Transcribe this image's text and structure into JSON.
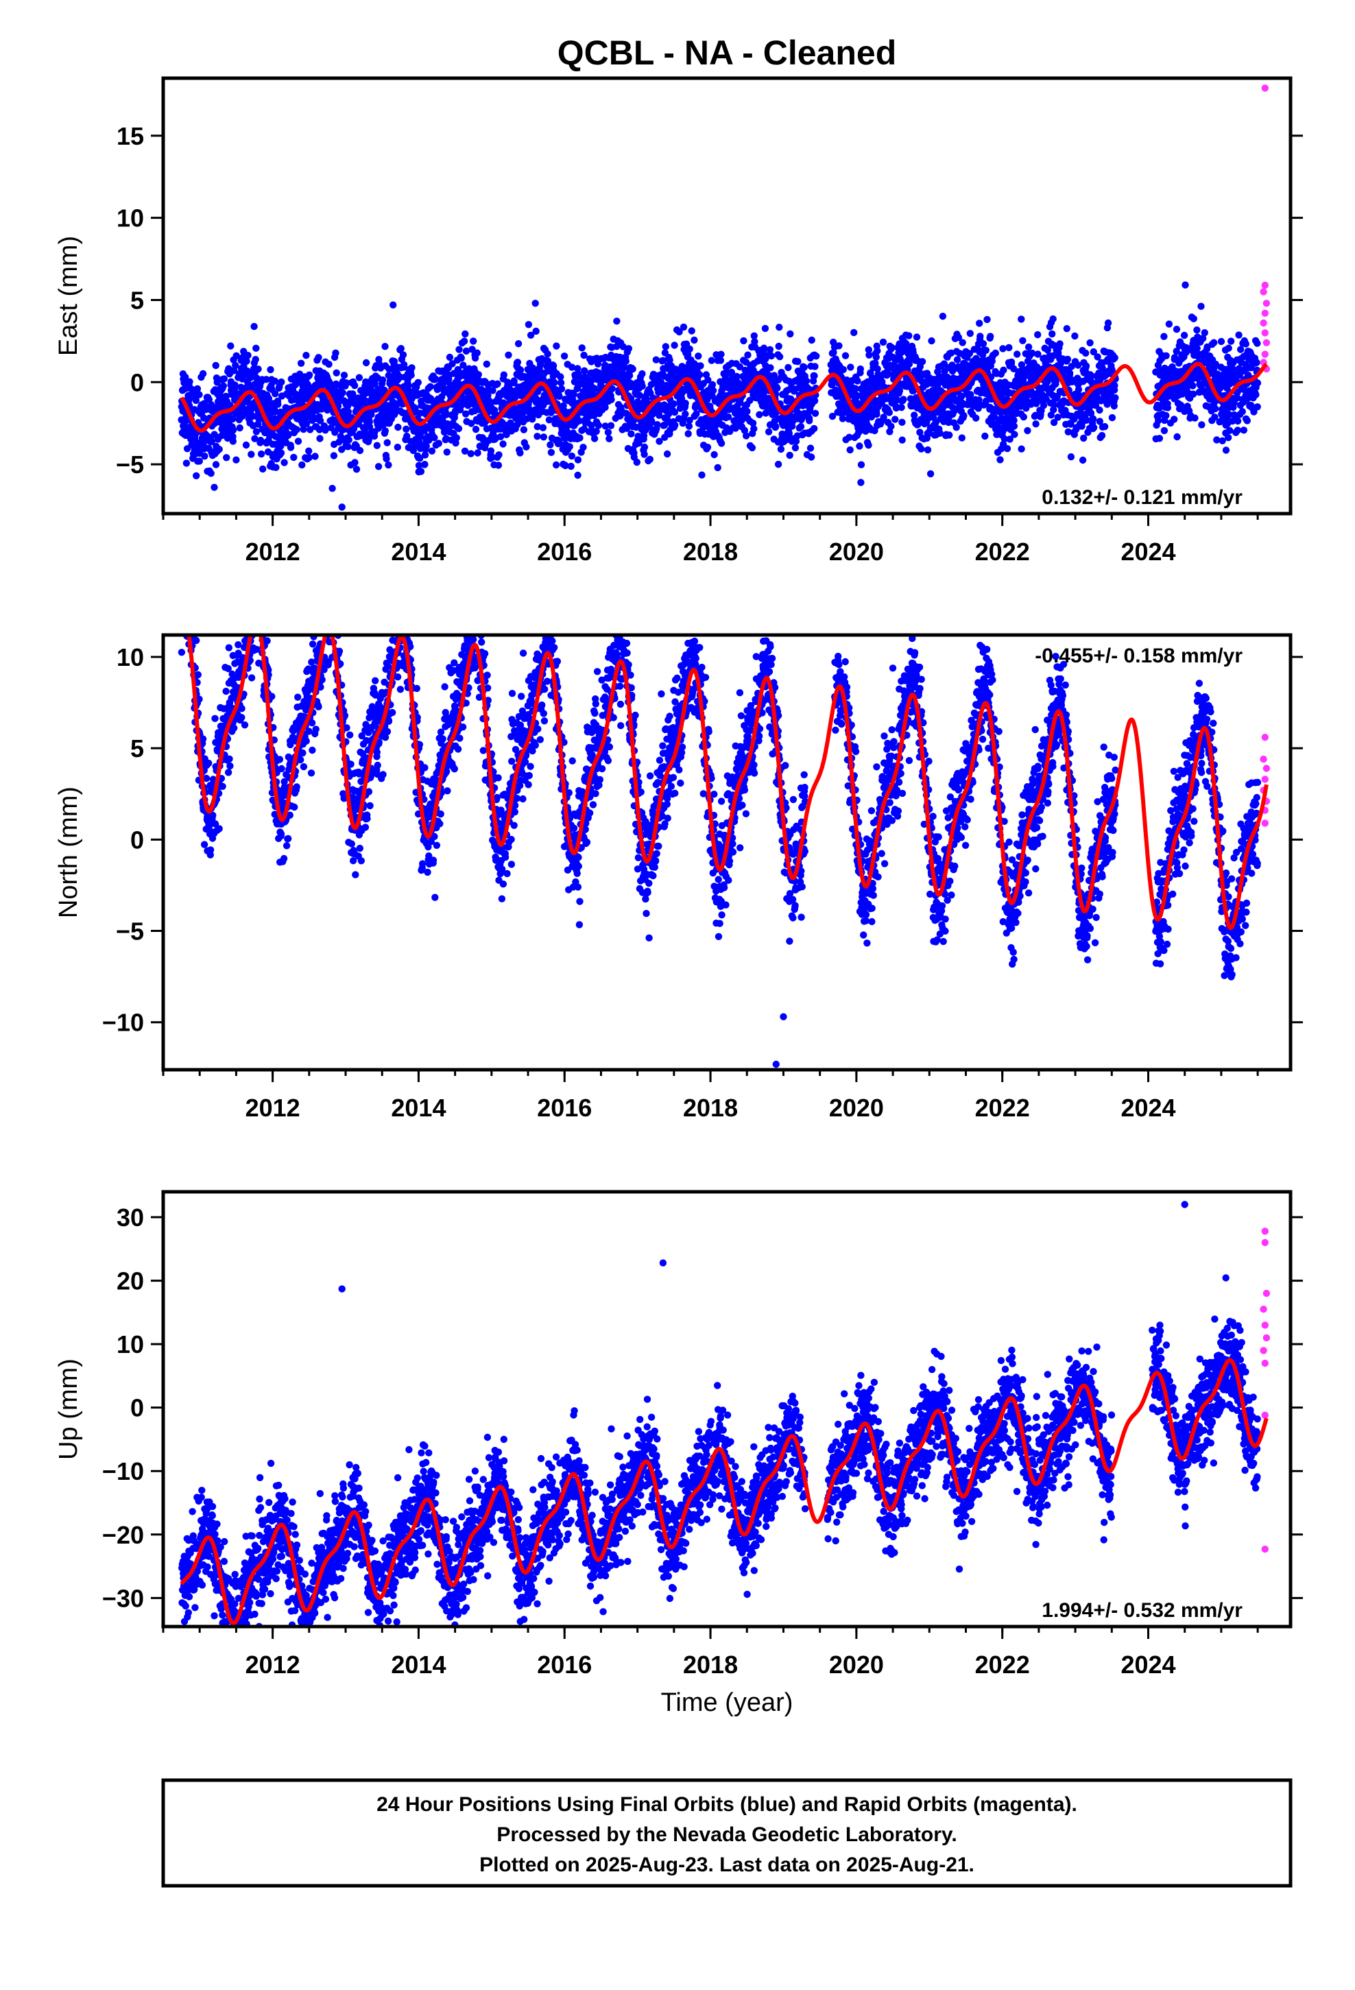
{
  "title": "QCBL  - NA - Cleaned",
  "xlabel": "Time (year)",
  "footer": [
    "24 Hour Positions Using Final Orbits (blue) and Rapid Orbits (magenta).",
    "Processed by the Nevada Geodetic Laboratory.",
    "Plotted on 2025-Aug-23. Last data on 2025-Aug-21."
  ],
  "colors": {
    "final": "#0000ff",
    "rapid": "#ff33ff",
    "model": "#ff0000",
    "axis": "#000000"
  },
  "chart_data": [
    {
      "type": "scatter",
      "ylabel": "East (mm)",
      "rate_label": "0.132+/- 0.121 mm/yr",
      "xlim": [
        2010.5,
        2025.95
      ],
      "ylim": [
        -8,
        18.5
      ],
      "xticks": [
        2012,
        2014,
        2016,
        2018,
        2020,
        2022,
        2024
      ],
      "xtick_labels": [
        "2012",
        "2014",
        "2016",
        "2018",
        "2020",
        "2022",
        "2024"
      ],
      "yticks": [
        -5,
        0,
        5,
        10,
        15
      ],
      "ytick_labels": [
        "−5",
        "0",
        "5",
        "10",
        "15"
      ],
      "model": {
        "intercept": -0.9,
        "rate": 0.132,
        "annual_amp": 0.9,
        "annual_phase": 0.35,
        "semi_amp": 0.4,
        "semi_phase": 0.1
      },
      "gaps": [
        [
          2019.45,
          2019.65
        ],
        [
          2023.55,
          2024.1
        ]
      ],
      "series": [
        {
          "kind": "final",
          "x_range": [
            2010.75,
            2025.5
          ],
          "scatter": 1.3,
          "seasonal_scale": 1.0,
          "outliers": [
            [
              2011.2,
              -6.4
            ],
            [
              2012.95,
              -7.6
            ],
            [
              2013.15,
              -5.3
            ],
            [
              2016.1,
              -4.5
            ],
            [
              2018.1,
              -5.2
            ],
            [
              2015.6,
              4.8
            ],
            [
              2013.65,
              4.7
            ]
          ]
        },
        {
          "kind": "rapid",
          "points": [
            [
              2025.6,
              17.9
            ],
            [
              2025.6,
              5.9
            ],
            [
              2025.58,
              5.5
            ],
            [
              2025.62,
              4.8
            ],
            [
              2025.6,
              4.2
            ],
            [
              2025.58,
              3.6
            ],
            [
              2025.6,
              3.0
            ],
            [
              2025.62,
              2.4
            ],
            [
              2025.6,
              1.7
            ],
            [
              2025.58,
              1.2
            ],
            [
              2025.62,
              0.8
            ]
          ]
        }
      ]
    },
    {
      "type": "scatter",
      "ylabel": "North (mm)",
      "rate_label": "-0.455+/- 0.158 mm/yr",
      "xlim": [
        2010.5,
        2025.95
      ],
      "ylim": [
        -12.6,
        11.2
      ],
      "xticks": [
        2012,
        2014,
        2016,
        2018,
        2020,
        2022,
        2024
      ],
      "xtick_labels": [
        "2012",
        "2014",
        "2016",
        "2018",
        "2020",
        "2022",
        "2024"
      ],
      "yticks": [
        -10,
        -5,
        0,
        5,
        10
      ],
      "ytick_labels": [
        "−10",
        "−5",
        "0",
        "5",
        "10"
      ],
      "model": {
        "intercept": 3.8,
        "rate": -0.455,
        "annual_amp": 4.6,
        "annual_phase": 0.45,
        "semi_amp": 1.6,
        "semi_phase": 0.2
      },
      "gaps": [
        [
          2019.3,
          2019.7
        ],
        [
          2023.55,
          2024.1
        ]
      ],
      "series": [
        {
          "kind": "final",
          "x_range": [
            2010.75,
            2025.5
          ],
          "scatter": 1.4,
          "seasonal_scale": 1.08,
          "outliers": [
            [
              2018.9,
              -12.3
            ],
            [
              2019.0,
              -9.7
            ],
            [
              2012.55,
              10.7
            ],
            [
              2011.4,
              10.5
            ],
            [
              2016.45,
              9.2
            ],
            [
              2018.55,
              6.9
            ]
          ]
        },
        {
          "kind": "rapid",
          "points": [
            [
              2025.6,
              5.6
            ],
            [
              2025.58,
              4.4
            ],
            [
              2025.62,
              3.9
            ],
            [
              2025.6,
              3.3
            ],
            [
              2025.58,
              2.7
            ],
            [
              2025.62,
              2.1
            ],
            [
              2025.6,
              1.6
            ],
            [
              2025.6,
              0.9
            ]
          ]
        }
      ]
    },
    {
      "type": "scatter",
      "ylabel": "Up (mm)",
      "rate_label": "1.994+/- 0.532 mm/yr",
      "xlim": [
        2010.5,
        2025.95
      ],
      "ylim": [
        -34.5,
        34
      ],
      "xticks": [
        2012,
        2014,
        2016,
        2018,
        2020,
        2022,
        2024
      ],
      "xtick_labels": [
        "2012",
        "2014",
        "2016",
        "2018",
        "2020",
        "2022",
        "2024"
      ],
      "yticks": [
        -30,
        -20,
        -10,
        0,
        10,
        20,
        30
      ],
      "ytick_labels": [
        "−30",
        "−20",
        "−10",
        "0",
        "10",
        "20",
        "30"
      ],
      "model": {
        "intercept": -13.5,
        "rate": 1.994,
        "annual_amp": 6.0,
        "annual_phase": 0.78,
        "semi_amp": 2.2,
        "semi_phase": 0.55
      },
      "gaps": [
        [
          2019.3,
          2019.6
        ],
        [
          2023.5,
          2024.05
        ]
      ],
      "series": [
        {
          "kind": "final",
          "x_range": [
            2010.75,
            2025.5
          ],
          "scatter": 3.6,
          "seasonal_scale": 1.0,
          "outliers": [
            [
              2011.2,
              -32.8
            ],
            [
              2011.5,
              -33.0
            ],
            [
              2012.95,
              18.7
            ],
            [
              2017.35,
              22.8
            ],
            [
              2024.5,
              32.0
            ],
            [
              2013.3,
              -26.8
            ],
            [
              2022.2,
              -13.2
            ]
          ]
        },
        {
          "kind": "rapid",
          "points": [
            [
              2025.6,
              27.8
            ],
            [
              2025.6,
              26.0
            ],
            [
              2025.62,
              18.0
            ],
            [
              2025.58,
              15.5
            ],
            [
              2025.6,
              13.0
            ],
            [
              2025.62,
              11.0
            ],
            [
              2025.58,
              9.0
            ],
            [
              2025.6,
              7.0
            ],
            [
              2025.6,
              -1.2
            ],
            [
              2025.6,
              -22.3
            ]
          ]
        }
      ]
    }
  ]
}
